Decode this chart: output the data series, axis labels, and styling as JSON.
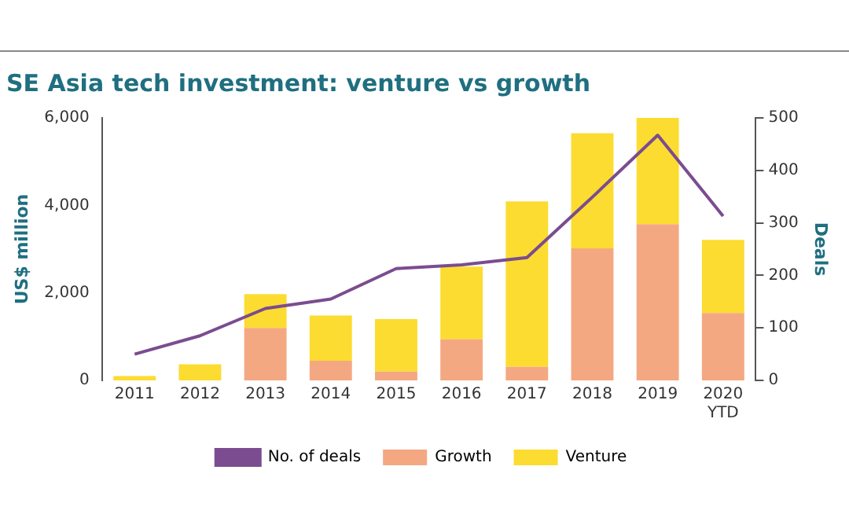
{
  "chart_data": {
    "type": "bar",
    "title": "SE Asia tech investment: venture vs growth",
    "ylabel": "US$ million",
    "y2label": "Deals",
    "categories": [
      "2011",
      "2012",
      "2013",
      "2014",
      "2015",
      "2016",
      "2017",
      "2018",
      "2019",
      "2020 YTD"
    ],
    "stacked": true,
    "legend": "bottom",
    "grid": false,
    "ylim": [
      0,
      6000
    ],
    "yticks": [
      {
        "value": 0,
        "label": "0"
      },
      {
        "value": 2000,
        "label": "2,000"
      },
      {
        "value": 4000,
        "label": "4,000"
      },
      {
        "value": 6000,
        "label": "6,000"
      }
    ],
    "y2lim": [
      0,
      500
    ],
    "y2ticks": [
      0,
      100,
      200,
      300,
      400,
      500
    ],
    "series": [
      {
        "name": "No. of deals",
        "type": "line",
        "axis": "y2",
        "color": "#7b4c8f",
        "marker": "none",
        "values": [
          50,
          85,
          137,
          155,
          213,
          220,
          234,
          349,
          467,
          313
        ]
      },
      {
        "name": "Growth",
        "color": "#f4a882",
        "values": [
          0,
          0,
          1200,
          450,
          200,
          940,
          310,
          3020,
          3570,
          1540
        ]
      },
      {
        "name": "Venture",
        "color": "#fcdc30",
        "values": [
          100,
          370,
          770,
          1030,
          1200,
          1660,
          3780,
          2630,
          2430,
          1670
        ]
      }
    ]
  }
}
